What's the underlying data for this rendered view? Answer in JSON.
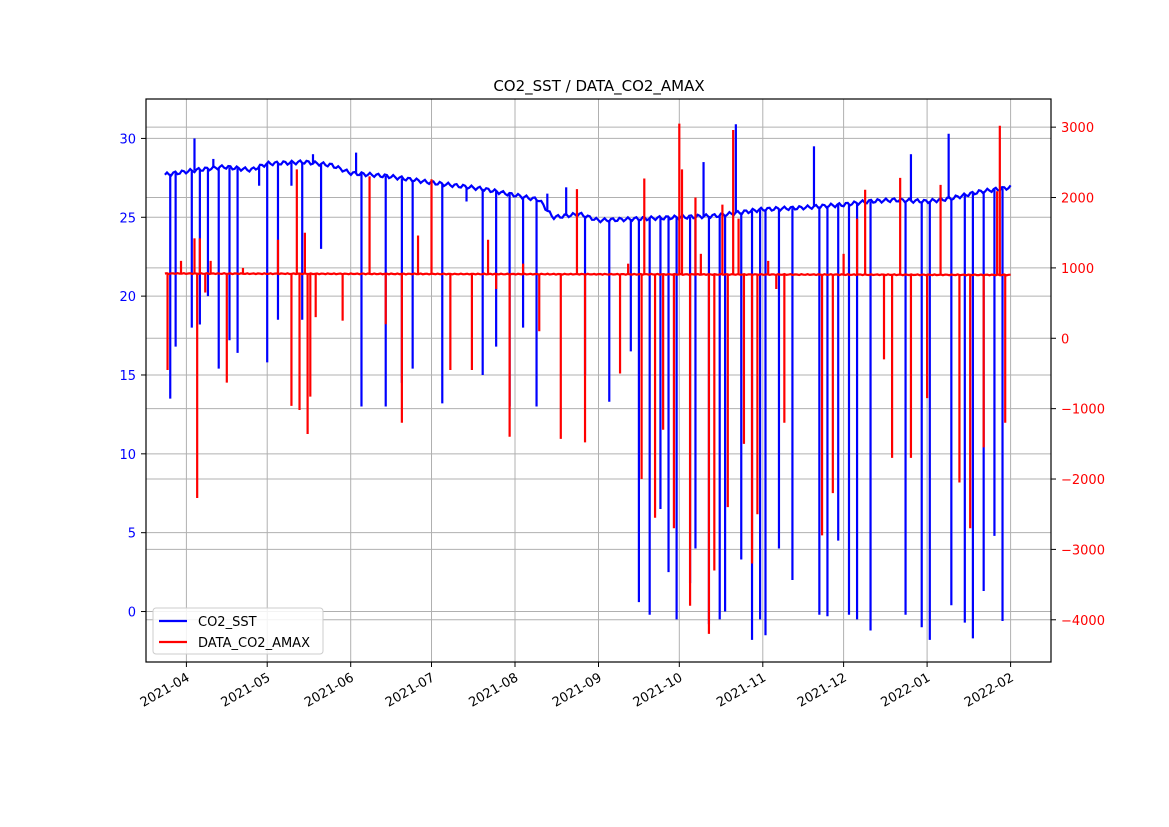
{
  "chart_data": {
    "type": "line",
    "title": "CO2_SST / DATA_CO2_AMAX",
    "xlabel": "",
    "ylabel": "",
    "y2label": "",
    "grid": true,
    "legend_position": "lower-left",
    "x_axis": {
      "type": "date",
      "range": [
        "2021-03-17",
        "2022-02-16"
      ],
      "ticks": [
        "2021-04-01",
        "2021-05-01",
        "2021-06-01",
        "2021-07-01",
        "2021-08-01",
        "2021-09-01",
        "2021-10-01",
        "2021-11-01",
        "2021-12-01",
        "2022-01-01",
        "2022-02-01"
      ],
      "tick_labels": [
        "2021-04",
        "2021-05",
        "2021-06",
        "2021-07",
        "2021-08",
        "2021-09",
        "2021-10",
        "2021-11",
        "2021-12",
        "2022-01",
        "2022-02"
      ]
    },
    "y_left": {
      "range": [
        -3.2,
        32.5
      ],
      "ticks": [
        0,
        5,
        10,
        15,
        20,
        25,
        30
      ],
      "tick_labels": [
        "0",
        "5",
        "10",
        "15",
        "20",
        "25",
        "30"
      ],
      "color": "#0000ff"
    },
    "y_right": {
      "range": [
        -4600,
        3400
      ],
      "ticks": [
        -4000,
        -3000,
        -2000,
        -1000,
        0,
        1000,
        2000,
        3000
      ],
      "tick_labels": [
        "−4000",
        "−3000",
        "−2000",
        "−1000",
        "0",
        "1000",
        "2000",
        "3000"
      ],
      "color": "#ff0000"
    },
    "series": [
      {
        "name": "CO2_SST",
        "axis": "left",
        "color": "#0000ff",
        "baseline": [
          [
            "2021-03-24",
            27.7
          ],
          [
            "2021-04-05",
            28.0
          ],
          [
            "2021-04-15",
            28.2
          ],
          [
            "2021-04-25",
            28.0
          ],
          [
            "2021-05-01",
            28.4
          ],
          [
            "2021-05-15",
            28.5
          ],
          [
            "2021-05-25",
            28.3
          ],
          [
            "2021-06-01",
            27.8
          ],
          [
            "2021-06-15",
            27.6
          ],
          [
            "2021-07-01",
            27.2
          ],
          [
            "2021-07-20",
            26.8
          ],
          [
            "2021-08-01",
            26.4
          ],
          [
            "2021-08-10",
            26.1
          ],
          [
            "2021-08-15",
            25.0
          ],
          [
            "2021-08-25",
            25.2
          ],
          [
            "2021-09-01",
            24.8
          ],
          [
            "2021-09-15",
            24.9
          ],
          [
            "2021-10-01",
            25.0
          ],
          [
            "2021-10-15",
            25.1
          ],
          [
            "2021-11-01",
            25.5
          ],
          [
            "2021-11-15",
            25.6
          ],
          [
            "2021-12-01",
            25.8
          ],
          [
            "2021-12-10",
            26.0
          ],
          [
            "2021-12-20",
            26.1
          ],
          [
            "2022-01-01",
            26.0
          ],
          [
            "2022-01-10",
            26.2
          ],
          [
            "2022-01-20",
            26.6
          ],
          [
            "2022-02-01",
            26.9
          ]
        ],
        "spikes": [
          [
            "2021-03-26",
            13.5
          ],
          [
            "2021-03-28",
            16.8
          ],
          [
            "2021-04-03",
            18.0
          ],
          [
            "2021-04-04",
            30.0
          ],
          [
            "2021-04-06",
            18.2
          ],
          [
            "2021-04-09",
            20.0
          ],
          [
            "2021-04-11",
            28.7
          ],
          [
            "2021-04-13",
            15.4
          ],
          [
            "2021-04-17",
            17.2
          ],
          [
            "2021-04-20",
            16.4
          ],
          [
            "2021-04-28",
            27.0
          ],
          [
            "2021-05-01",
            15.8
          ],
          [
            "2021-05-05",
            18.5
          ],
          [
            "2021-05-10",
            27.0
          ],
          [
            "2021-05-14",
            18.5
          ],
          [
            "2021-05-18",
            29.0
          ],
          [
            "2021-05-21",
            23.0
          ],
          [
            "2021-06-03",
            29.1
          ],
          [
            "2021-06-05",
            13.0
          ],
          [
            "2021-06-14",
            13.0
          ],
          [
            "2021-06-20",
            14.5
          ],
          [
            "2021-06-24",
            15.4
          ],
          [
            "2021-07-05",
            13.2
          ],
          [
            "2021-07-14",
            26.0
          ],
          [
            "2021-07-20",
            15.0
          ],
          [
            "2021-07-25",
            16.8
          ],
          [
            "2021-07-30",
            13.0
          ],
          [
            "2021-08-04",
            18.0
          ],
          [
            "2021-08-09",
            13.0
          ],
          [
            "2021-08-13",
            26.5
          ],
          [
            "2021-08-20",
            26.9
          ],
          [
            "2021-08-27",
            15.0
          ],
          [
            "2021-09-05",
            13.3
          ],
          [
            "2021-09-13",
            16.5
          ],
          [
            "2021-09-16",
            0.6
          ],
          [
            "2021-09-20",
            -0.2
          ],
          [
            "2021-09-24",
            6.5
          ],
          [
            "2021-09-27",
            2.5
          ],
          [
            "2021-09-30",
            -0.5
          ],
          [
            "2021-10-05",
            1.8
          ],
          [
            "2021-10-07",
            4.0
          ],
          [
            "2021-10-10",
            28.5
          ],
          [
            "2021-10-12",
            -0.8
          ],
          [
            "2021-10-16",
            -0.5
          ],
          [
            "2021-10-18",
            0.0
          ],
          [
            "2021-10-22",
            30.9
          ],
          [
            "2021-10-24",
            3.3
          ],
          [
            "2021-10-28",
            -1.8
          ],
          [
            "2021-10-31",
            -0.5
          ],
          [
            "2021-11-02",
            -1.5
          ],
          [
            "2021-11-07",
            4.0
          ],
          [
            "2021-11-12",
            2.0
          ],
          [
            "2021-11-20",
            29.5
          ],
          [
            "2021-11-22",
            -0.2
          ],
          [
            "2021-11-25",
            -0.3
          ],
          [
            "2021-11-29",
            4.5
          ],
          [
            "2021-12-03",
            -0.2
          ],
          [
            "2021-12-06",
            -0.5
          ],
          [
            "2021-12-11",
            -1.2
          ],
          [
            "2021-12-24",
            -0.2
          ],
          [
            "2021-12-26",
            29.0
          ],
          [
            "2021-12-30",
            -1.0
          ],
          [
            "2022-01-02",
            -1.8
          ],
          [
            "2022-01-09",
            30.3
          ],
          [
            "2022-01-10",
            0.4
          ],
          [
            "2022-01-15",
            -0.7
          ],
          [
            "2022-01-18",
            -1.7
          ],
          [
            "2022-01-22",
            1.3
          ],
          [
            "2022-01-26",
            4.8
          ],
          [
            "2022-01-29",
            -0.6
          ]
        ]
      },
      {
        "name": "DATA_CO2_AMAX",
        "axis": "right",
        "color": "#ff0000",
        "baseline": [
          [
            "2021-03-24",
            920
          ],
          [
            "2022-02-01",
            900
          ]
        ],
        "spikes": [
          [
            "2021-03-25",
            -450
          ],
          [
            "2021-03-30",
            1100
          ],
          [
            "2021-04-04",
            1420
          ],
          [
            "2021-04-05",
            -2270
          ],
          [
            "2021-04-06",
            1420
          ],
          [
            "2021-04-08",
            650
          ],
          [
            "2021-04-10",
            1100
          ],
          [
            "2021-04-16",
            -630
          ],
          [
            "2021-04-22",
            1000
          ],
          [
            "2021-05-05",
            1400
          ],
          [
            "2021-05-10",
            -960
          ],
          [
            "2021-05-12",
            2400
          ],
          [
            "2021-05-13",
            -1020
          ],
          [
            "2021-05-15",
            1500
          ],
          [
            "2021-05-16",
            -1360
          ],
          [
            "2021-05-17",
            -830
          ],
          [
            "2021-05-19",
            300
          ],
          [
            "2021-05-29",
            250
          ],
          [
            "2021-06-08",
            2300
          ],
          [
            "2021-06-14",
            200
          ],
          [
            "2021-06-20",
            -1200
          ],
          [
            "2021-06-26",
            1460
          ],
          [
            "2021-07-01",
            2260
          ],
          [
            "2021-07-08",
            -450
          ],
          [
            "2021-07-16",
            -450
          ],
          [
            "2021-07-22",
            1400
          ],
          [
            "2021-07-25",
            700
          ],
          [
            "2021-07-30",
            -1400
          ],
          [
            "2021-08-04",
            1060
          ],
          [
            "2021-08-10",
            100
          ],
          [
            "2021-08-18",
            -1430
          ],
          [
            "2021-08-24",
            2120
          ],
          [
            "2021-08-27",
            -1480
          ],
          [
            "2021-09-09",
            -500
          ],
          [
            "2021-09-12",
            1060
          ],
          [
            "2021-09-17",
            -2000
          ],
          [
            "2021-09-18",
            2270
          ],
          [
            "2021-09-22",
            -2550
          ],
          [
            "2021-09-25",
            -1300
          ],
          [
            "2021-09-29",
            -2700
          ],
          [
            "2021-10-01",
            3050
          ],
          [
            "2021-10-02",
            2400
          ],
          [
            "2021-10-05",
            -3800
          ],
          [
            "2021-10-07",
            2000
          ],
          [
            "2021-10-09",
            1200
          ],
          [
            "2021-10-12",
            -4200
          ],
          [
            "2021-10-14",
            -3300
          ],
          [
            "2021-10-17",
            1900
          ],
          [
            "2021-10-19",
            -2400
          ],
          [
            "2021-10-21",
            2960
          ],
          [
            "2021-10-23",
            1700
          ],
          [
            "2021-10-25",
            -1500
          ],
          [
            "2021-10-28",
            -3200
          ],
          [
            "2021-10-30",
            -2500
          ],
          [
            "2021-11-03",
            1100
          ],
          [
            "2021-11-06",
            700
          ],
          [
            "2021-11-09",
            -1200
          ],
          [
            "2021-11-23",
            -2800
          ],
          [
            "2021-11-27",
            -2200
          ],
          [
            "2021-12-01",
            1200
          ],
          [
            "2021-12-06",
            1700
          ],
          [
            "2021-12-09",
            2110
          ],
          [
            "2021-12-16",
            -300
          ],
          [
            "2021-12-19",
            -1700
          ],
          [
            "2021-12-22",
            2280
          ],
          [
            "2021-12-26",
            -1700
          ],
          [
            "2022-01-01",
            -850
          ],
          [
            "2022-01-06",
            2180
          ],
          [
            "2022-01-13",
            -2050
          ],
          [
            "2022-01-17",
            -2700
          ],
          [
            "2022-01-22",
            -1550
          ],
          [
            "2022-01-27",
            2090
          ],
          [
            "2022-01-28",
            3020
          ],
          [
            "2022-01-30",
            -1200
          ]
        ]
      }
    ]
  }
}
